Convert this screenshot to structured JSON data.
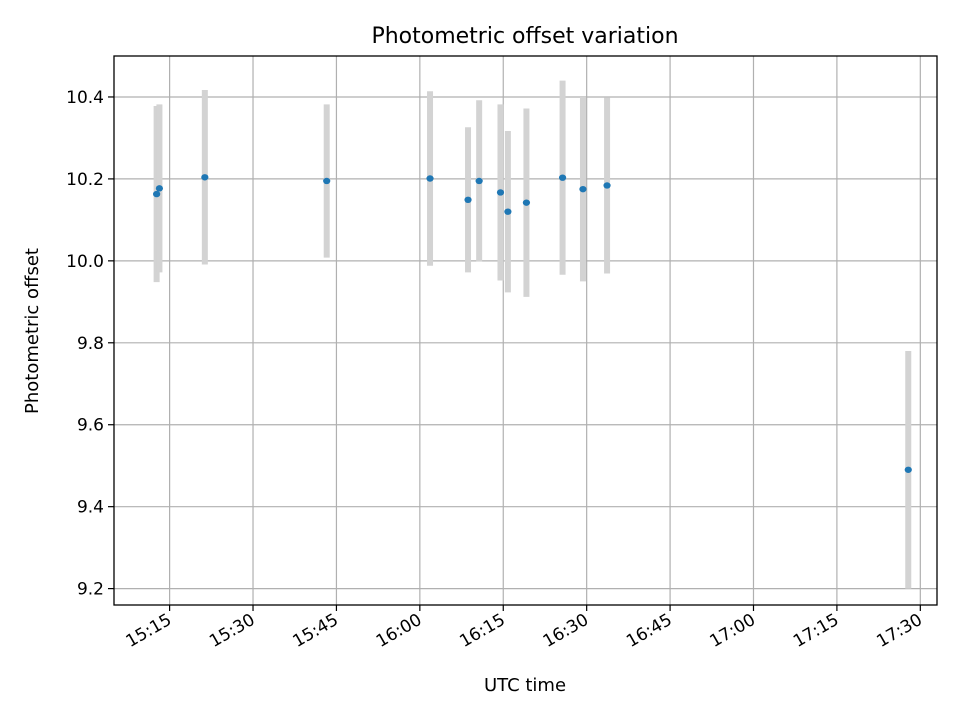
{
  "chart_data": {
    "type": "scatter",
    "title": "Photometric offset variation",
    "xlabel": "UTC time",
    "ylabel": "Photometric offset",
    "x_unit": "UTC HH:MM:SS",
    "xlim": [
      "15:05:00",
      "17:33:00"
    ],
    "ylim": [
      9.16,
      10.5
    ],
    "x_ticks": [
      "15:15",
      "15:30",
      "15:45",
      "16:00",
      "16:15",
      "16:30",
      "16:45",
      "17:00",
      "17:15",
      "17:30"
    ],
    "y_ticks": [
      "9.2",
      "9.4",
      "9.6",
      "9.8",
      "10.0",
      "10.2",
      "10.4"
    ],
    "grid": true,
    "colors": {
      "point": "#1f77b4",
      "errorbar": "#d3d3d3",
      "grid": "#b0b0b0"
    },
    "series": [
      {
        "points": [
          {
            "t": "15:12:40",
            "y": 10.163,
            "yerr": 0.215
          },
          {
            "t": "15:13:10",
            "y": 10.177,
            "yerr": 0.205
          },
          {
            "t": "15:21:20",
            "y": 10.204,
            "yerr": 0.213
          },
          {
            "t": "15:43:15",
            "y": 10.195,
            "yerr": 0.187
          },
          {
            "t": "16:01:50",
            "y": 10.201,
            "yerr": 0.213
          },
          {
            "t": "16:08:40",
            "y": 10.149,
            "yerr": 0.177
          },
          {
            "t": "16:10:40",
            "y": 10.195,
            "yerr": 0.197
          },
          {
            "t": "16:14:30",
            "y": 10.167,
            "yerr": 0.215
          },
          {
            "t": "16:15:50",
            "y": 10.12,
            "yerr": 0.197
          },
          {
            "t": "16:19:10",
            "y": 10.142,
            "yerr": 0.23
          },
          {
            "t": "16:25:40",
            "y": 10.203,
            "yerr": 0.237
          },
          {
            "t": "16:29:20",
            "y": 10.175,
            "yerr": 0.225
          },
          {
            "t": "16:33:40",
            "y": 10.184,
            "yerr": 0.215
          },
          {
            "t": "17:27:50",
            "y": 9.49,
            "yerr": 0.29
          }
        ]
      }
    ]
  }
}
